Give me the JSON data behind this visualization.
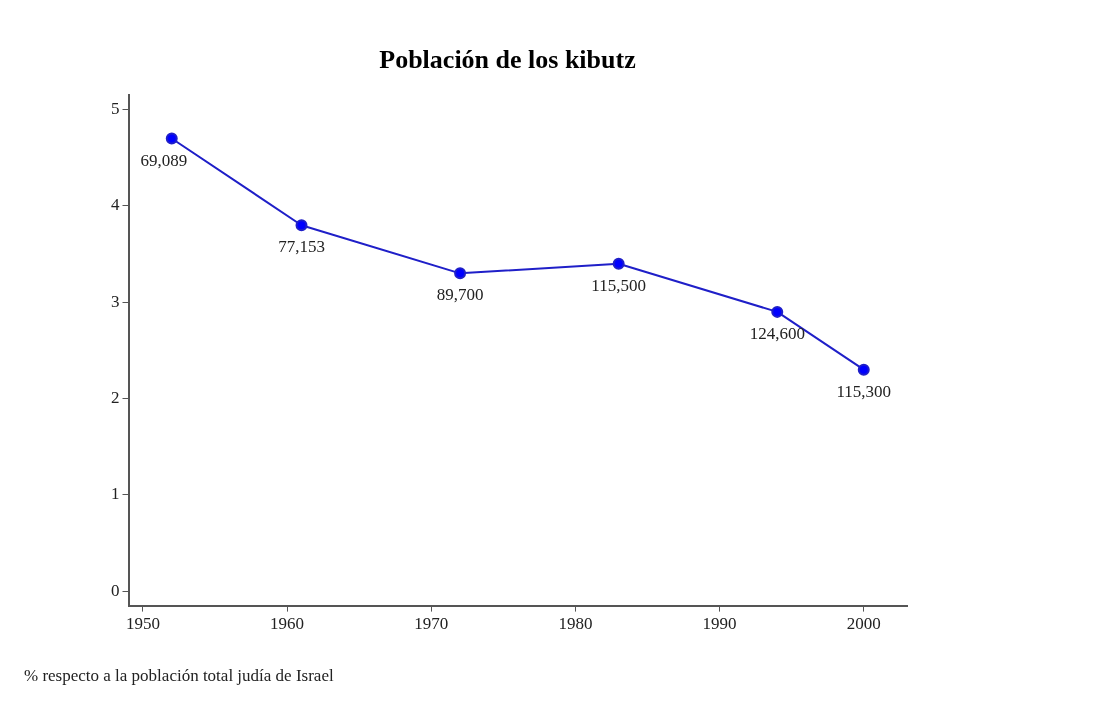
{
  "chart_data": {
    "type": "line",
    "title": "Población de los kibutz",
    "x": [
      1952,
      1961,
      1972,
      1983,
      1994,
      2000
    ],
    "series": [
      {
        "color": "#1f1fc8",
        "values": [
          4.7,
          3.8,
          3.3,
          3.4,
          2.9,
          2.3
        ]
      }
    ],
    "xlim": [
      1949,
      2003
    ],
    "xticks": [
      1950,
      1960,
      1970,
      1980,
      1990,
      2000
    ],
    "ylim": [
      -0.15,
      5.15
    ],
    "yticks": [
      0,
      1,
      2,
      3,
      4,
      5
    ],
    "grid": false,
    "legend": false,
    "marker": "circle",
    "line_style": "solid",
    "annotations": [
      {
        "text": "69,089",
        "x": 1952,
        "y": 4.7
      },
      {
        "text": "77,153",
        "x": 1961,
        "y": 3.8
      },
      {
        "text": "89,700",
        "x": 1972,
        "y": 3.3
      },
      {
        "text": "115,500",
        "x": 1983,
        "y": 3.4
      },
      {
        "text": "124,600",
        "x": 1994,
        "y": 2.9
      },
      {
        "text": "115,300",
        "x": 2000,
        "y": 2.3
      },
      "% respecto a la población total judía de Israel"
    ]
  }
}
